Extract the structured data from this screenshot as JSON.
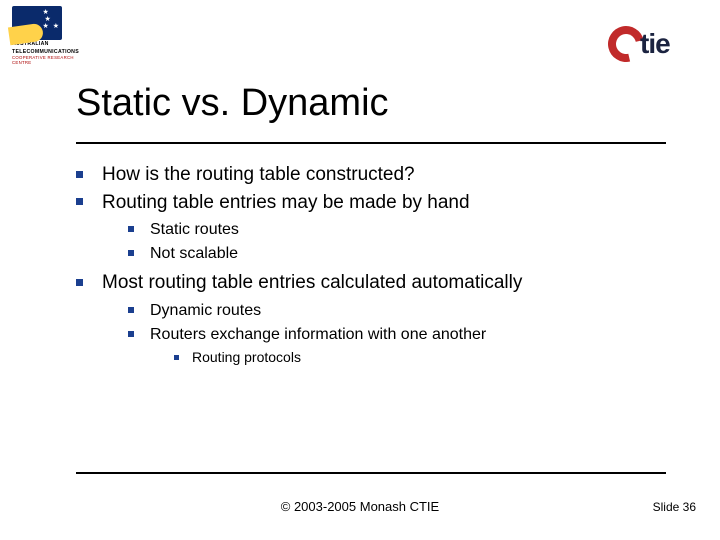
{
  "logo_left": {
    "line1": "AUSTRALIAN",
    "line2": "TELECOMMUNICATIONS",
    "sub": "COOPERATIVE RESEARCH CENTRE"
  },
  "logo_right": {
    "text": "tie"
  },
  "title": "Static vs. Dynamic",
  "bullets": {
    "i0": "How is the routing table constructed?",
    "i1": "Routing table entries may be made by hand",
    "i1_0": "Static routes",
    "i1_1": "Not scalable",
    "i2": "Most routing table entries calculated automatically",
    "i2_0": "Dynamic routes",
    "i2_1": "Routers exchange information with one another",
    "i2_1_0": "Routing protocols"
  },
  "footer": {
    "center": "© 2003-2005 Monash CTIE",
    "right": "Slide 36"
  },
  "colors": {
    "bullet": "#1b3f8f",
    "rule": "#000000",
    "ctie_red": "#c12a2a",
    "ctie_navy": "#1b2340"
  }
}
